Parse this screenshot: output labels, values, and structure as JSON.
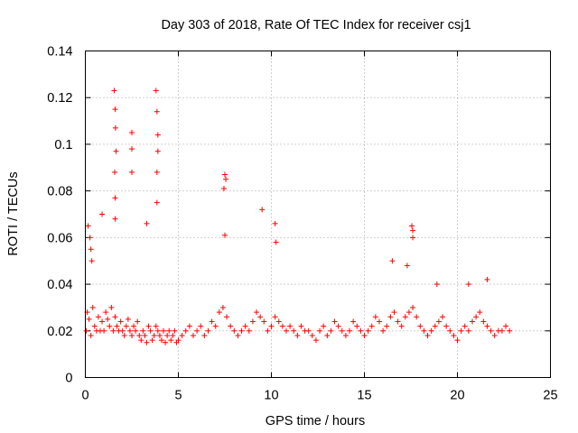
{
  "chart_data": {
    "type": "scatter",
    "title": "Day 303 of 2018, Rate Of TEC Index for receiver csj1",
    "xlabel": "GPS time / hours",
    "ylabel": "ROTI / TECUs",
    "xlim": [
      0,
      25
    ],
    "ylim": [
      0,
      0.14
    ],
    "xticks": [
      0,
      5,
      10,
      15,
      20,
      25
    ],
    "xtick_labels": [
      "0",
      "5",
      "10",
      "15",
      "20",
      "25"
    ],
    "yticks": [
      0,
      0.02,
      0.04,
      0.06,
      0.08,
      0.1,
      0.12,
      0.14
    ],
    "ytick_labels": [
      "0",
      "0.02",
      "0.04",
      "0.06",
      "0.08",
      "0.1",
      "0.12",
      "0.14"
    ],
    "grid": true,
    "marker": "+",
    "color": "#ff0000",
    "series": [
      {
        "name": "csj1",
        "x": [
          0.05,
          0.1,
          0.2,
          0.3,
          0.4,
          0.5,
          0.6,
          0.7,
          0.8,
          0.9,
          1.0,
          1.1,
          1.2,
          1.3,
          1.4,
          1.5,
          1.6,
          1.7,
          1.8,
          1.9,
          2.0,
          2.1,
          2.2,
          2.3,
          2.4,
          2.5,
          2.6,
          2.7,
          2.8,
          2.9,
          3.0,
          3.1,
          3.2,
          3.3,
          3.4,
          3.5,
          3.6,
          3.7,
          3.8,
          3.9,
          4.0,
          4.1,
          4.2,
          4.3,
          4.4,
          4.5,
          4.6,
          4.7,
          4.8,
          4.9,
          5.0,
          5.2,
          5.4,
          5.6,
          5.8,
          6.0,
          6.2,
          6.4,
          6.6,
          6.8,
          7.0,
          7.2,
          7.4,
          7.6,
          7.8,
          8.0,
          8.2,
          8.4,
          8.6,
          8.8,
          9.0,
          9.2,
          9.4,
          9.6,
          9.8,
          10.0,
          10.2,
          10.4,
          10.6,
          10.8,
          11.0,
          11.2,
          11.4,
          11.6,
          11.8,
          12.0,
          12.2,
          12.4,
          12.6,
          12.8,
          13.0,
          13.2,
          13.4,
          13.6,
          13.8,
          14.0,
          14.2,
          14.4,
          14.6,
          14.8,
          15.0,
          15.2,
          15.4,
          15.6,
          15.8,
          16.0,
          16.2,
          16.4,
          16.6,
          16.8,
          17.0,
          17.2,
          17.4,
          17.6,
          17.8,
          18.0,
          18.2,
          18.4,
          18.6,
          18.8,
          19.0,
          19.2,
          19.4,
          19.6,
          19.8,
          20.0,
          20.2,
          20.4,
          20.6,
          20.8,
          21.0,
          21.2,
          21.4,
          21.6,
          21.8,
          22.0,
          22.2,
          22.4,
          22.6,
          22.8,
          0.15,
          0.25,
          0.3,
          0.35,
          0.9,
          1.55,
          1.6,
          1.62,
          1.65,
          1.58,
          1.6,
          1.6,
          2.5,
          2.5,
          2.5,
          3.3,
          3.8,
          3.85,
          3.9,
          3.9,
          3.85,
          3.85,
          7.5,
          7.55,
          7.45,
          7.5,
          9.5,
          10.2,
          10.25,
          17.55,
          17.6,
          17.6,
          16.5,
          17.3,
          18.9,
          20.6,
          21.6
        ],
        "y": [
          0.02,
          0.028,
          0.025,
          0.018,
          0.03,
          0.022,
          0.02,
          0.026,
          0.02,
          0.024,
          0.02,
          0.028,
          0.025,
          0.022,
          0.03,
          0.02,
          0.026,
          0.022,
          0.02,
          0.024,
          0.02,
          0.018,
          0.022,
          0.025,
          0.02,
          0.018,
          0.022,
          0.02,
          0.024,
          0.018,
          0.016,
          0.02,
          0.018,
          0.015,
          0.022,
          0.02,
          0.016,
          0.018,
          0.022,
          0.02,
          0.018,
          0.016,
          0.02,
          0.015,
          0.018,
          0.02,
          0.016,
          0.018,
          0.02,
          0.015,
          0.016,
          0.018,
          0.02,
          0.022,
          0.018,
          0.02,
          0.022,
          0.018,
          0.02,
          0.024,
          0.022,
          0.028,
          0.03,
          0.026,
          0.022,
          0.02,
          0.018,
          0.02,
          0.022,
          0.02,
          0.024,
          0.028,
          0.026,
          0.024,
          0.02,
          0.022,
          0.026,
          0.024,
          0.022,
          0.02,
          0.022,
          0.02,
          0.018,
          0.022,
          0.02,
          0.02,
          0.018,
          0.016,
          0.02,
          0.022,
          0.018,
          0.02,
          0.024,
          0.022,
          0.02,
          0.018,
          0.02,
          0.024,
          0.022,
          0.02,
          0.018,
          0.02,
          0.022,
          0.026,
          0.024,
          0.02,
          0.022,
          0.026,
          0.028,
          0.024,
          0.022,
          0.026,
          0.028,
          0.03,
          0.026,
          0.022,
          0.02,
          0.018,
          0.02,
          0.022,
          0.024,
          0.026,
          0.022,
          0.02,
          0.018,
          0.016,
          0.02,
          0.022,
          0.02,
          0.024,
          0.026,
          0.028,
          0.024,
          0.022,
          0.02,
          0.018,
          0.02,
          0.02,
          0.022,
          0.02,
          0.065,
          0.06,
          0.055,
          0.05,
          0.07,
          0.123,
          0.115,
          0.107,
          0.097,
          0.088,
          0.077,
          0.068,
          0.105,
          0.098,
          0.088,
          0.066,
          0.123,
          0.114,
          0.104,
          0.097,
          0.088,
          0.075,
          0.087,
          0.085,
          0.081,
          0.061,
          0.072,
          0.066,
          0.058,
          0.065,
          0.063,
          0.06,
          0.05,
          0.048,
          0.04,
          0.04,
          0.042
        ]
      }
    ]
  }
}
